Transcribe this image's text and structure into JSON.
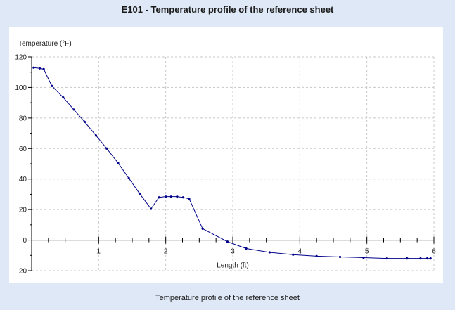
{
  "page": {
    "title": "E101 - Temperature profile of the reference sheet",
    "caption": "Temperature profile of the reference sheet"
  },
  "colors": {
    "background": "#dfe8f6",
    "panel": "#ffffff",
    "series": "#00008b",
    "grid": "#c8c8c8",
    "axis": "#000000"
  },
  "chart_data": {
    "type": "line",
    "title": "",
    "xlabel": "Length (ft)",
    "ylabel": "Temperature (°F)",
    "xlim": [
      0,
      6
    ],
    "ylim": [
      -20,
      120
    ],
    "xticks": [
      1,
      2,
      3,
      4,
      5,
      6
    ],
    "yticks": [
      -20,
      0,
      20,
      40,
      60,
      80,
      100,
      120
    ],
    "grid": true,
    "legend": "none",
    "series": [
      {
        "x": [
          0.03,
          0.12,
          0.18,
          0.3,
          0.47,
          0.63,
          0.79,
          0.96,
          1.12,
          1.29,
          1.45,
          1.61,
          1.78,
          1.9,
          2.0,
          2.08,
          2.17,
          2.26,
          2.35,
          2.55,
          2.92,
          3.2,
          3.55,
          3.9,
          4.25,
          4.6,
          4.95,
          5.3,
          5.6,
          5.8,
          5.9,
          5.95
        ],
        "y": [
          113,
          112.5,
          112,
          101,
          93.5,
          85.5,
          77.5,
          68.5,
          60,
          50.5,
          40.5,
          30.5,
          20.5,
          28,
          28.5,
          28.5,
          28.5,
          28,
          27,
          7.5,
          -1,
          -5.5,
          -8,
          -9.5,
          -10.5,
          -11,
          -11.5,
          -12,
          -12,
          -12,
          -12,
          -12
        ]
      }
    ]
  }
}
